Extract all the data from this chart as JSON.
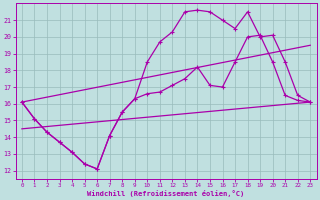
{
  "xlabel": "Windchill (Refroidissement éolien,°C)",
  "xlim": [
    -0.5,
    23.5
  ],
  "ylim": [
    11.5,
    22.0
  ],
  "yticks": [
    12,
    13,
    14,
    15,
    16,
    17,
    18,
    19,
    20,
    21
  ],
  "xticks": [
    0,
    1,
    2,
    3,
    4,
    5,
    6,
    7,
    8,
    9,
    10,
    11,
    12,
    13,
    14,
    15,
    16,
    17,
    18,
    19,
    20,
    21,
    22,
    23
  ],
  "bg_color": "#c0e0e0",
  "line_color": "#aa00aa",
  "grid_color": "#99bbbb",
  "main_x": [
    0,
    1,
    2,
    3,
    4,
    5,
    6,
    7,
    8,
    9,
    10,
    11,
    12,
    13,
    14,
    15,
    16,
    17,
    18,
    19,
    20,
    21,
    22,
    23
  ],
  "main_y": [
    16.1,
    15.1,
    14.3,
    13.7,
    13.1,
    12.4,
    12.1,
    14.1,
    15.5,
    16.3,
    16.6,
    16.7,
    17.1,
    17.5,
    18.2,
    17.1,
    17.0,
    18.5,
    20.0,
    20.1,
    18.5,
    16.5,
    16.2,
    16.1
  ],
  "upper_x": [
    0,
    1,
    2,
    3,
    4,
    5,
    6,
    7,
    8,
    9,
    10,
    11,
    12,
    13,
    14,
    15,
    16,
    17,
    18,
    19,
    20,
    21,
    22,
    23
  ],
  "upper_y": [
    16.1,
    15.1,
    14.3,
    13.7,
    13.1,
    12.4,
    12.1,
    14.1,
    15.5,
    16.3,
    18.5,
    19.7,
    20.3,
    21.5,
    21.6,
    21.5,
    21.0,
    20.5,
    21.5,
    20.0,
    20.1,
    18.5,
    16.5,
    16.1
  ],
  "lower_trend_x": [
    0,
    23
  ],
  "lower_trend_y": [
    14.5,
    16.1
  ],
  "upper_trend_x": [
    0,
    23
  ],
  "upper_trend_y": [
    16.1,
    19.5
  ]
}
